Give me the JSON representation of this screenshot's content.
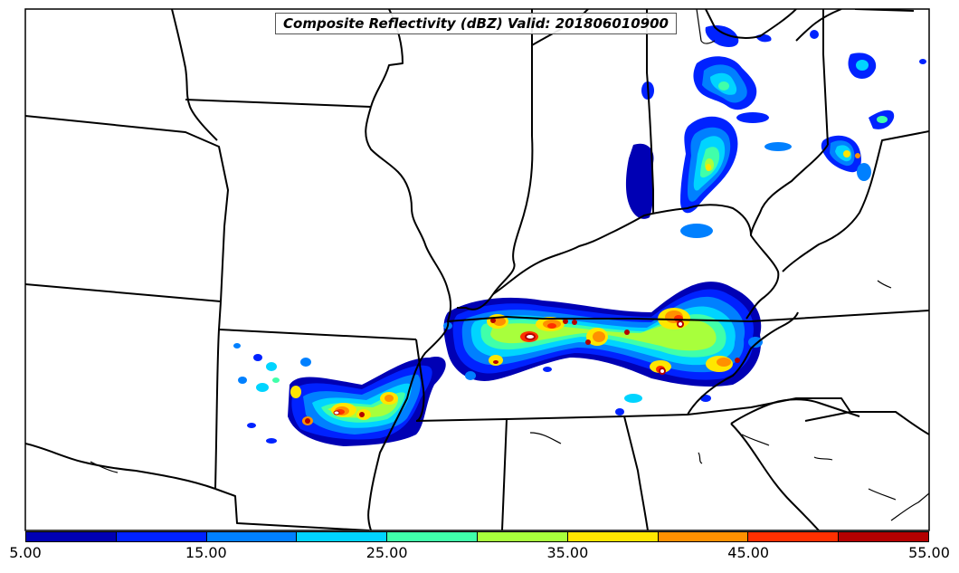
{
  "map": {
    "title": "Composite Reflectivity (dBZ) Valid: 201806010900",
    "variable": "Composite Reflectivity",
    "units": "dBZ",
    "valid_time": "201806010900",
    "region": "Central / Ohio Valley United States",
    "background_color": "#ffffff",
    "boundary_color": "#000000"
  },
  "colorbar": {
    "min": 5.0,
    "max": 55.0,
    "step": 5.0,
    "labels": [
      "5.00",
      "15.00",
      "25.00",
      "35.00",
      "45.00",
      "55.00"
    ],
    "colors": [
      "#0000b4",
      "#0022ff",
      "#0080ff",
      "#00d4ff",
      "#40ffaa",
      "#a8ff3c",
      "#ffe600",
      "#ff9000",
      "#ff3000",
      "#b40000"
    ]
  }
}
